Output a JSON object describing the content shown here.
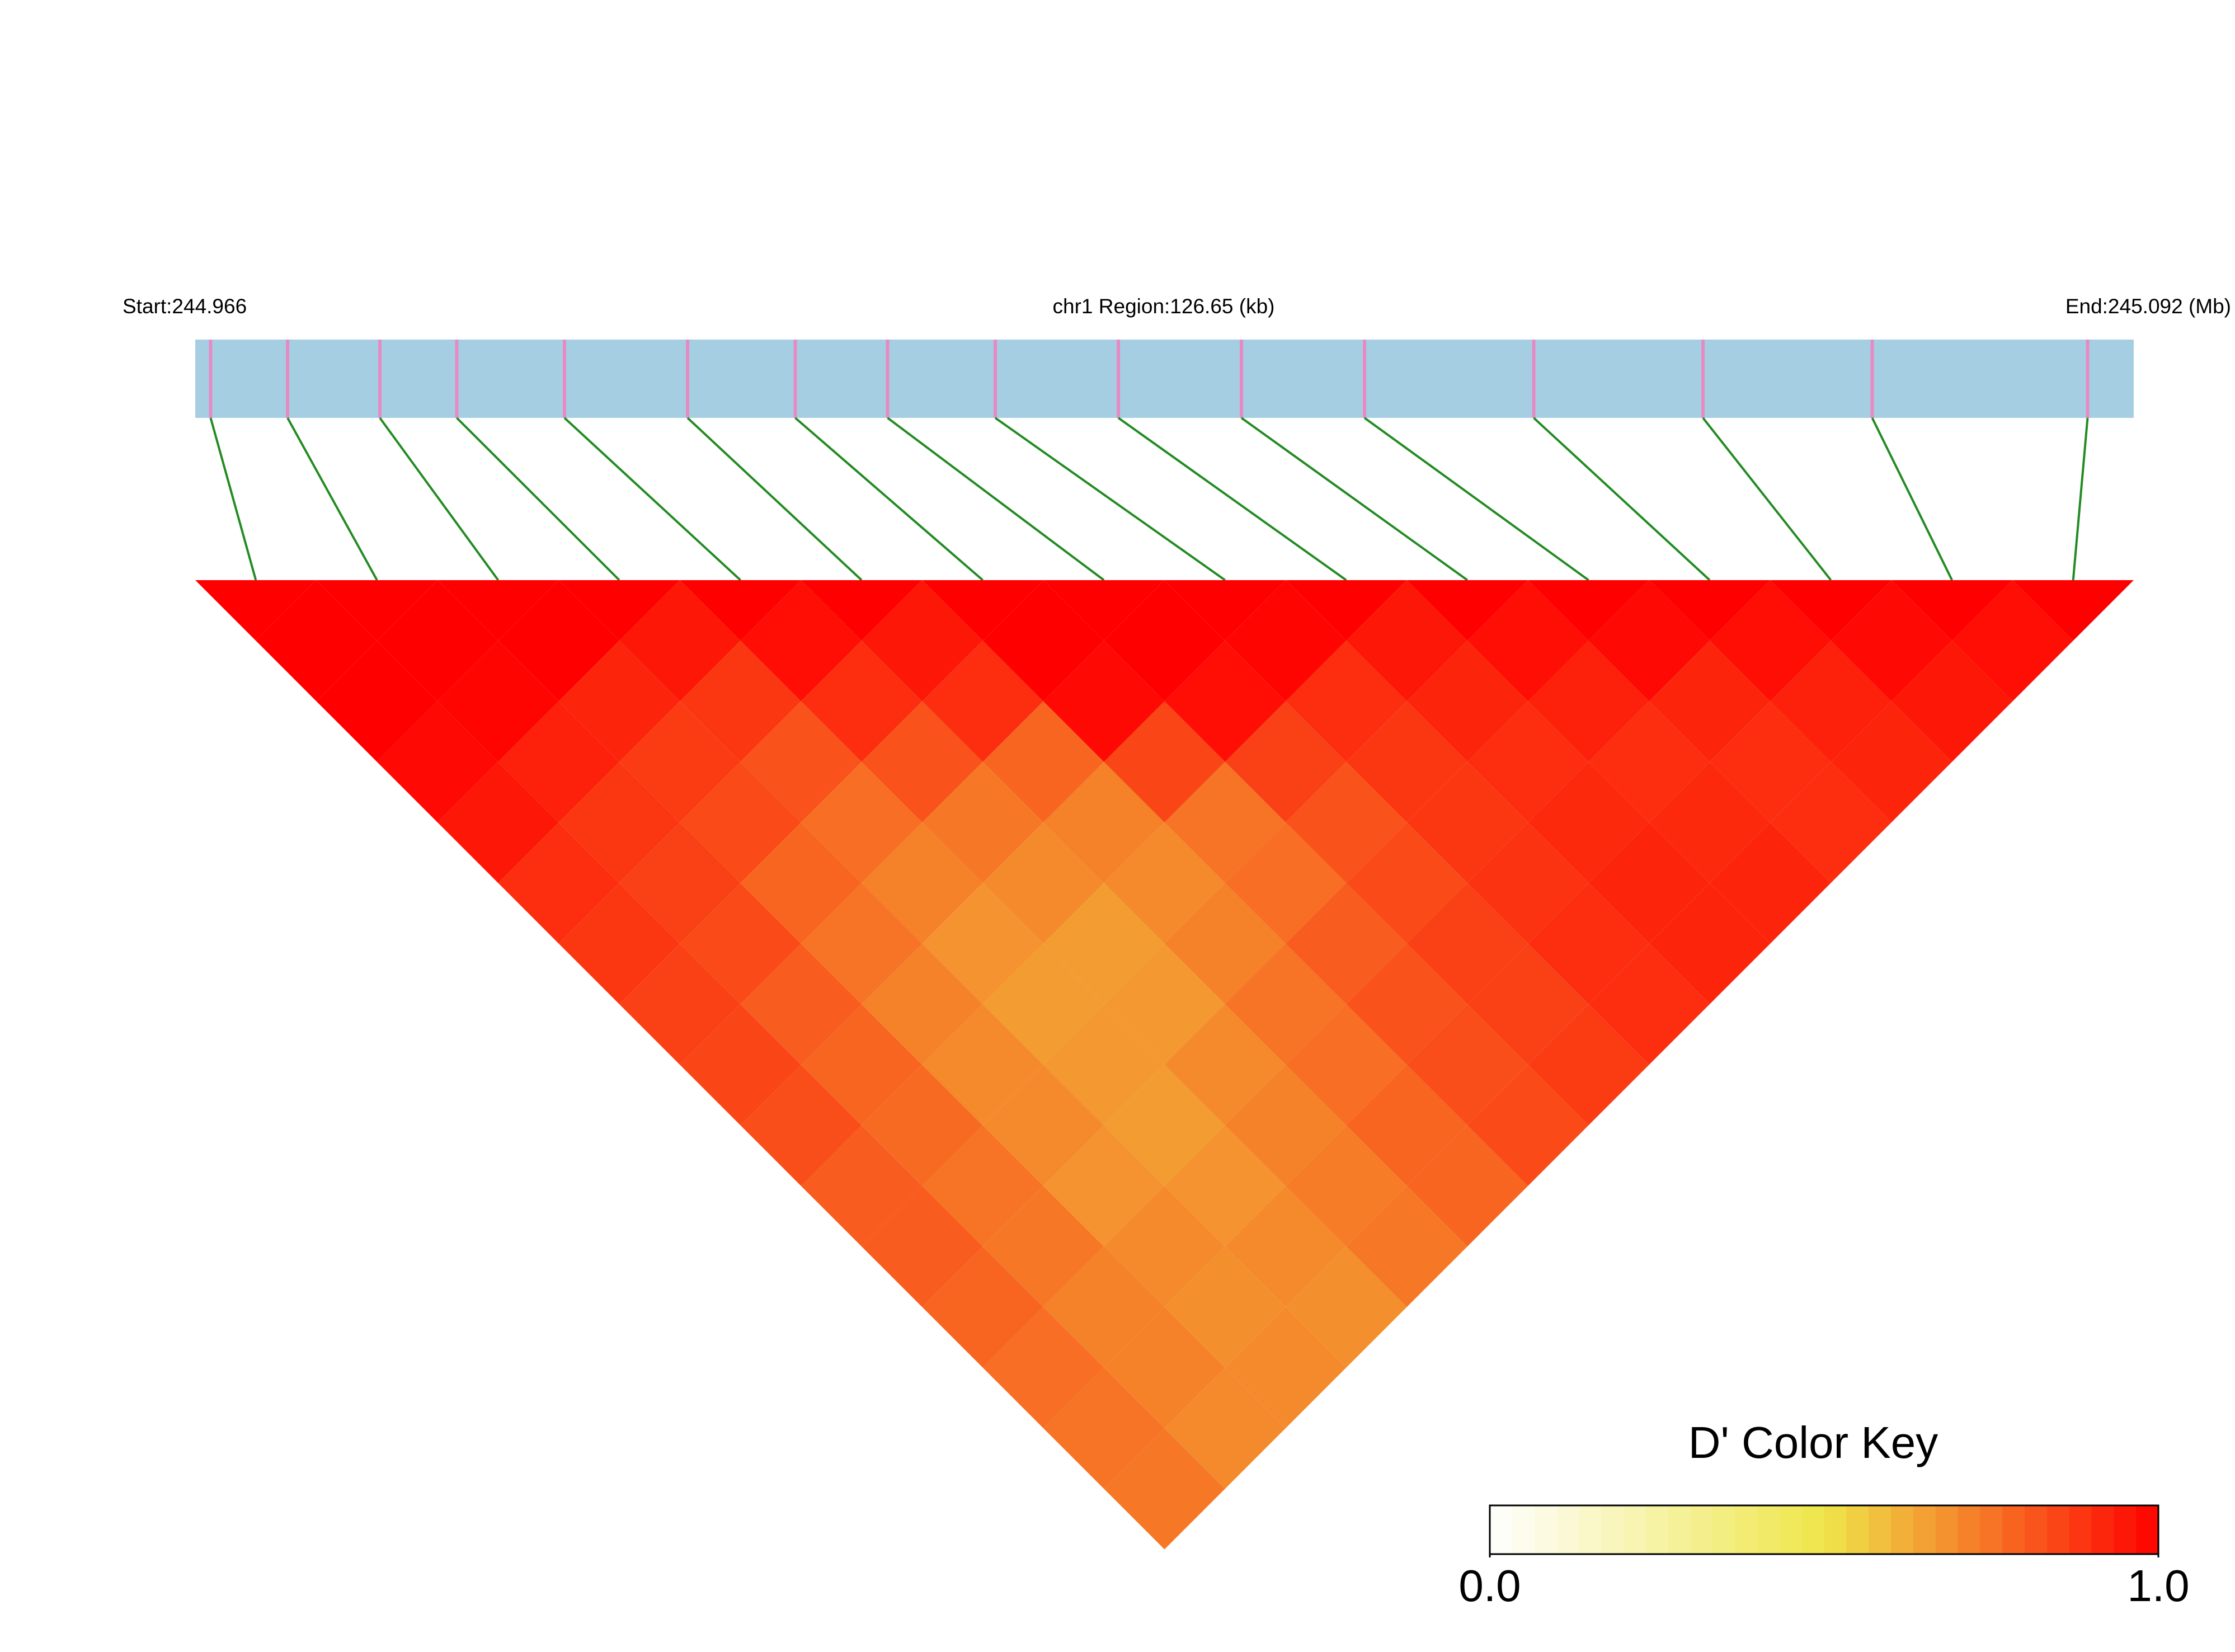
{
  "chart_data": {
    "type": "ld_heatmap",
    "start_label": "Start:244.966",
    "region_label": "chr1 Region:126.65 (kb)",
    "end_label": "End:245.092 (Mb)",
    "xlim": [
      244.966,
      245.092
    ],
    "positions": [
      244.967,
      244.972,
      244.978,
      244.983,
      244.99,
      244.998,
      245.005,
      245.011,
      245.018,
      245.026,
      245.034,
      245.042,
      245.053,
      245.064,
      245.075,
      245.089
    ],
    "ld": [
      [
        1,
        1,
        0.98,
        0.95,
        0.9,
        0.88,
        0.86,
        0.85,
        0.83,
        0.8,
        0.8,
        0.78,
        0.76,
        0.75,
        0.74
      ],
      [
        1,
        0.99,
        0.93,
        0.88,
        0.86,
        0.84,
        0.8,
        0.78,
        0.77,
        0.75,
        0.74,
        0.72,
        0.72,
        0.7
      ],
      [
        1,
        0.92,
        0.87,
        0.84,
        0.78,
        0.75,
        0.72,
        0.7,
        0.7,
        0.68,
        0.7,
        0.69,
        0.7
      ],
      [
        0.95,
        0.88,
        0.82,
        0.76,
        0.72,
        0.68,
        0.66,
        0.67,
        0.66,
        0.68,
        0.7,
        0.69
      ],
      [
        0.97,
        0.9,
        0.82,
        0.74,
        0.7,
        0.66,
        0.67,
        0.7,
        0.72,
        0.73,
        0.74
      ],
      [
        0.95,
        0.9,
        0.78,
        0.72,
        0.7,
        0.72,
        0.75,
        0.76,
        0.78,
        0.78
      ],
      [
        1,
        0.98,
        0.85,
        0.75,
        0.76,
        0.8,
        0.82,
        0.83,
        0.84
      ],
      [
        1,
        0.97,
        0.86,
        0.82,
        0.84,
        0.86,
        0.86,
        0.87
      ],
      [
        0.99,
        0.9,
        0.88,
        0.88,
        0.89,
        0.9,
        0.9
      ],
      [
        0.95,
        0.92,
        0.9,
        0.91,
        0.92,
        0.92
      ],
      [
        0.97,
        0.93,
        0.9,
        0.91,
        0.92
      ],
      [
        0.98,
        0.92,
        0.9,
        0.9
      ],
      [
        0.97,
        0.93,
        0.92
      ],
      [
        0.98,
        0.95
      ],
      [
        0.97
      ]
    ],
    "colors": [
      "#ffffff",
      "#eee64a",
      "#ff0000"
    ],
    "track_color": "#a6cee3",
    "snp_color": "#e78ac3",
    "connector_color": "#228b22",
    "colorbar_title": "D' Color Key",
    "colorbar_lim": [
      0,
      1
    ],
    "colorbar_ticks": [
      {
        "value": 0,
        "label": "0.0"
      },
      {
        "value": 1,
        "label": "1.0"
      }
    ]
  }
}
